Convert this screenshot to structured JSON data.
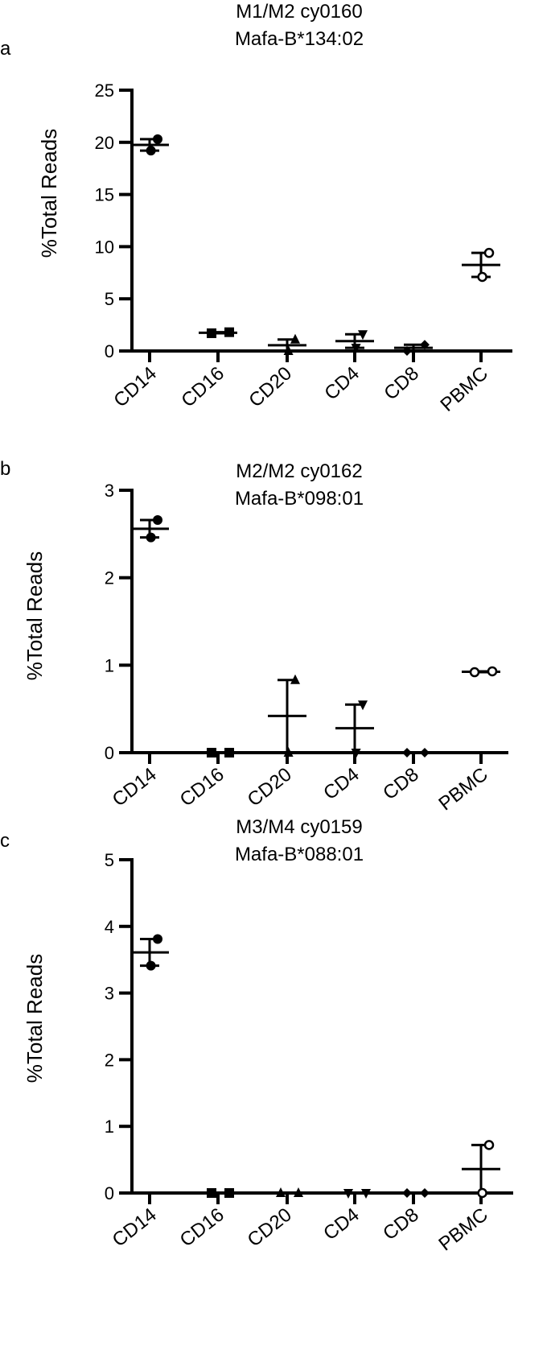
{
  "figure": {
    "panels": [
      {
        "letter": "a",
        "title_line1": "M1/M2 cy0160",
        "title_line2": "Mafa-B*134:02",
        "ylabel": "%Total Reads",
        "yticks": [
          "0",
          "5",
          "10",
          "15",
          "20",
          "25"
        ]
      },
      {
        "letter": "b",
        "title_line1": "M2/M2 cy0162",
        "title_line2": "Mafa-B*098:01",
        "ylabel": "%Total Reads",
        "yticks": [
          "0",
          "1",
          "2",
          "3"
        ]
      },
      {
        "letter": "c",
        "title_line1": "M3/M4 cy0159",
        "title_line2": "Mafa-B*088:01",
        "ylabel": "%Total Reads",
        "yticks": [
          "0",
          "1",
          "2",
          "3",
          "4",
          "5"
        ]
      }
    ]
  },
  "chart_data": [
    {
      "type": "scatter",
      "title": "M1/M2 cy0160 Mafa-B*134:02",
      "xlabel": "",
      "ylabel": "%Total Reads",
      "categories": [
        "CD14",
        "CD16",
        "CD20",
        "CD4",
        "CD8",
        "PBMC"
      ],
      "ylim": [
        0,
        25
      ],
      "yticks": [
        0,
        5,
        10,
        15,
        20,
        25
      ],
      "grid": false,
      "points": [
        {
          "category": "CD14",
          "values": [
            19.2,
            20.3
          ],
          "marker": "circle"
        },
        {
          "category": "CD16",
          "values": [
            1.7,
            1.8
          ],
          "marker": "square"
        },
        {
          "category": "CD20",
          "values": [
            0.0,
            1.1
          ],
          "marker": "triangle-up"
        },
        {
          "category": "CD4",
          "values": [
            0.3,
            1.6
          ],
          "marker": "triangle-down"
        },
        {
          "category": "CD8",
          "values": [
            0.0,
            0.6
          ],
          "marker": "diamond"
        },
        {
          "category": "PBMC",
          "values": [
            7.1,
            9.4
          ],
          "marker": "open-circle"
        }
      ],
      "means": [
        19.75,
        1.75,
        0.55,
        0.95,
        0.3,
        8.25
      ]
    },
    {
      "type": "scatter",
      "title": "M2/M2 cy0162 Mafa-B*098:01",
      "xlabel": "",
      "ylabel": "%Total Reads",
      "categories": [
        "CD14",
        "CD16",
        "CD20",
        "CD4",
        "CD8",
        "PBMC"
      ],
      "ylim": [
        0,
        3
      ],
      "yticks": [
        0,
        1,
        2,
        3
      ],
      "grid": false,
      "points": [
        {
          "category": "CD14",
          "values": [
            2.46,
            2.66
          ],
          "marker": "circle"
        },
        {
          "category": "CD16",
          "values": [
            0.0,
            0.0
          ],
          "marker": "square"
        },
        {
          "category": "CD20",
          "values": [
            0.0,
            0.83
          ],
          "marker": "triangle-up"
        },
        {
          "category": "CD4",
          "values": [
            0.0,
            0.55
          ],
          "marker": "triangle-down"
        },
        {
          "category": "CD8",
          "values": [
            0.0,
            0.0
          ],
          "marker": "diamond"
        },
        {
          "category": "PBMC",
          "values": [
            0.92,
            0.93
          ],
          "marker": "open-circle"
        }
      ],
      "means": [
        2.56,
        0.0,
        0.42,
        0.28,
        0.0,
        0.925
      ]
    },
    {
      "type": "scatter",
      "title": "M3/M4 cy0159 Mafa-B*088:01",
      "xlabel": "",
      "ylabel": "%Total Reads",
      "categories": [
        "CD14",
        "CD16",
        "CD20",
        "CD4",
        "CD8",
        "PBMC"
      ],
      "ylim": [
        0,
        5
      ],
      "yticks": [
        0,
        1,
        2,
        3,
        4,
        5
      ],
      "grid": false,
      "points": [
        {
          "category": "CD14",
          "values": [
            3.41,
            3.81
          ],
          "marker": "circle"
        },
        {
          "category": "CD16",
          "values": [
            0.0,
            0.0
          ],
          "marker": "square"
        },
        {
          "category": "CD20",
          "values": [
            0.0,
            0.0
          ],
          "marker": "triangle-up"
        },
        {
          "category": "CD4",
          "values": [
            0.0,
            0.0
          ],
          "marker": "triangle-down"
        },
        {
          "category": "CD8",
          "values": [
            0.0,
            0.0
          ],
          "marker": "diamond"
        },
        {
          "category": "PBMC",
          "values": [
            0.0,
            0.72
          ],
          "marker": "open-circle"
        }
      ],
      "means": [
        3.61,
        0.0,
        0.0,
        0.0,
        0.0,
        0.36
      ]
    }
  ]
}
